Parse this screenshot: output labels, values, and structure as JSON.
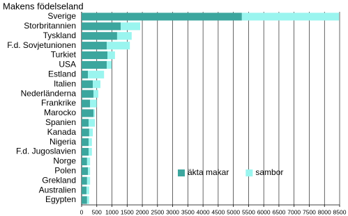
{
  "chart_data": {
    "type": "bar",
    "orientation": "horizontal",
    "stacked": true,
    "title": "Makens födelseland",
    "categories": [
      "Sverige",
      "Storbritannien",
      "Tyskland",
      "F.d. Sovjetunionen",
      "Turkiet",
      "USA",
      "Estland",
      "Italien",
      "Nederländerna",
      "Frankrike",
      "Marocko",
      "Spanien",
      "Kanada",
      "Nigeria",
      "F.d. Jugoslavien",
      "Norge",
      "Polen",
      "Grekland",
      "Australien",
      "Egypten"
    ],
    "series": [
      {
        "name": "äkta makar",
        "color": "#3ca69e",
        "values": [
          5280,
          1290,
          1170,
          830,
          850,
          830,
          210,
          370,
          390,
          280,
          390,
          230,
          250,
          230,
          230,
          180,
          210,
          180,
          160,
          180
        ]
      },
      {
        "name": "sambor",
        "color": "#9af5ef",
        "values": [
          3200,
          640,
          480,
          760,
          250,
          160,
          530,
          250,
          160,
          220,
          50,
          210,
          120,
          110,
          110,
          100,
          70,
          100,
          90,
          70
        ]
      }
    ],
    "xlim": [
      0,
      8500
    ],
    "xticks": [
      0,
      500,
      1000,
      1500,
      2000,
      2500,
      3000,
      3500,
      4000,
      4500,
      5000,
      5500,
      6000,
      6500,
      7000,
      7500,
      8000,
      8500
    ],
    "grid": true,
    "legend": "lower right"
  }
}
